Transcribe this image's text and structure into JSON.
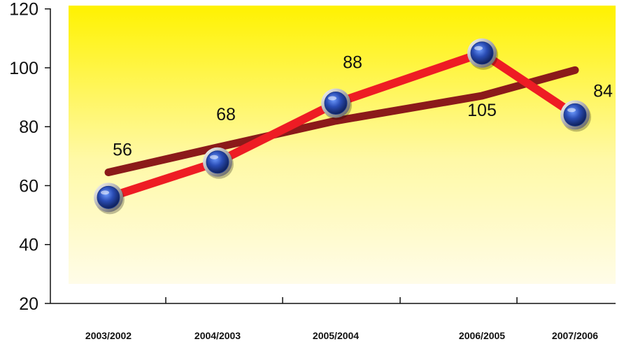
{
  "chart_data": {
    "type": "line",
    "categories": [
      "2003/2002",
      "2004/2003",
      "2005/2004",
      "2006/2005",
      "2007/2006"
    ],
    "series": [
      {
        "values": [
          56,
          68,
          88,
          105,
          84
        ]
      },
      {
        "kind": "trend",
        "values": [
          64.5,
          73,
          82,
          90.5,
          99.2
        ]
      }
    ],
    "data_labels": [
      "56",
      "68",
      "88",
      "105",
      "84"
    ],
    "yticks": [
      "20",
      "40",
      "60",
      "80",
      "100",
      "120"
    ],
    "ylim": [
      20,
      120
    ],
    "grid": false,
    "colors": {
      "main_line": "#ee1c24",
      "trend_line": "#8b1a1a",
      "marker": "#1e3a8a",
      "background_top": "#fff200",
      "background_bottom": "#fffce8"
    }
  }
}
